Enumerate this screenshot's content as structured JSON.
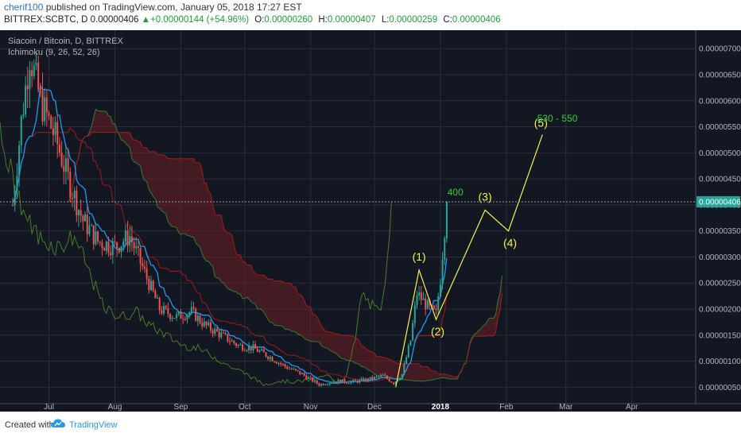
{
  "header": {
    "user": "cherif100",
    "published": "published on TradingView.com, January 05, 2018 17:27 EST",
    "symbol": "BITTREX:SCBTC, D",
    "last": "0.00000406",
    "change": "+0.00000144 (+54.96%)",
    "o_label": "O:",
    "o": "0.00000260",
    "h_label": "H:",
    "h": "0.00000407",
    "l_label": "L:",
    "l": "0.00000259",
    "c_label": "C:",
    "c": "0.00000406"
  },
  "legend": {
    "title": "Siacoin / Bitcoin, D, BITTREX",
    "indicator": "Ichimoku (9, 26, 52, 26)"
  },
  "footer": {
    "created_with": "Created with",
    "brand": "TradingView"
  },
  "colors": {
    "background": "#131722",
    "up": "#26a69a",
    "down": "#ef5350",
    "tenkan": "#2196f3",
    "kijun": "#8b1a1a",
    "chikou": "#4a7a2a",
    "cloud": "#6e1f24",
    "annotation": "#f3f34a",
    "target_text": "#2ecc40"
  },
  "chart_data": {
    "type": "candlestick",
    "y_axis_labels": [
      "0.00000700",
      "0.00000650",
      "0.00000600",
      "0.00000550",
      "0.00000500",
      "0.00000450",
      "0.00000400",
      "0.00000350",
      "0.00000300",
      "0.00000250",
      "0.00000200",
      "0.00000150",
      "0.00000100",
      "0.00000050"
    ],
    "x_axis_labels": [
      "Jul",
      "Aug",
      "Sep",
      "Oct",
      "Nov",
      "Dec",
      "2018",
      "Feb",
      "Mar",
      "Apr"
    ],
    "last_price_label": "0.00000406",
    "close_path": [
      {
        "date": "2017-06-14",
        "price": 400
      },
      {
        "date": "2017-06-18",
        "price": 560
      },
      {
        "date": "2017-06-22",
        "price": 690
      },
      {
        "date": "2017-06-27",
        "price": 600
      },
      {
        "date": "2017-07-04",
        "price": 530
      },
      {
        "date": "2017-07-10",
        "price": 450
      },
      {
        "date": "2017-07-17",
        "price": 370
      },
      {
        "date": "2017-07-24",
        "price": 330
      },
      {
        "date": "2017-08-01",
        "price": 320
      },
      {
        "date": "2017-08-08",
        "price": 340
      },
      {
        "date": "2017-08-15",
        "price": 270
      },
      {
        "date": "2017-08-22",
        "price": 200
      },
      {
        "date": "2017-08-30",
        "price": 185
      },
      {
        "date": "2017-09-06",
        "price": 195
      },
      {
        "date": "2017-09-12",
        "price": 170
      },
      {
        "date": "2017-09-20",
        "price": 150
      },
      {
        "date": "2017-09-28",
        "price": 130
      },
      {
        "date": "2017-10-05",
        "price": 125
      },
      {
        "date": "2017-10-12",
        "price": 110
      },
      {
        "date": "2017-10-20",
        "price": 90
      },
      {
        "date": "2017-10-28",
        "price": 75
      },
      {
        "date": "2017-11-05",
        "price": 55
      },
      {
        "date": "2017-11-12",
        "price": 62
      },
      {
        "date": "2017-11-20",
        "price": 60
      },
      {
        "date": "2017-11-28",
        "price": 65
      },
      {
        "date": "2017-12-05",
        "price": 72
      },
      {
        "date": "2017-12-10",
        "price": 58
      },
      {
        "date": "2017-12-14",
        "price": 75
      },
      {
        "date": "2017-12-18",
        "price": 140
      },
      {
        "date": "2017-12-21",
        "price": 230
      },
      {
        "date": "2017-12-24",
        "price": 215
      },
      {
        "date": "2017-12-27",
        "price": 200
      },
      {
        "date": "2017-12-30",
        "price": 190
      },
      {
        "date": "2018-01-01",
        "price": 260
      },
      {
        "date": "2018-01-04",
        "price": 406
      }
    ],
    "wave_projection": [
      {
        "label": "",
        "date": "2017-12-11",
        "price": 50
      },
      {
        "label": "(1)",
        "date": "2017-12-22",
        "price": 275
      },
      {
        "label": "(2)",
        "date": "2017-12-30",
        "price": 180
      },
      {
        "label": "(3)",
        "date": "2018-01-22",
        "price": 390
      },
      {
        "label": "(4)",
        "date": "2018-02-02",
        "price": 350
      },
      {
        "label": "(5)",
        "date": "2018-02-18",
        "price": 535
      }
    ],
    "annotations": [
      {
        "text": "400",
        "date": "2018-01-08",
        "price": 418
      },
      {
        "text": "530 - 550",
        "date": "2018-02-25",
        "price": 560
      }
    ]
  }
}
